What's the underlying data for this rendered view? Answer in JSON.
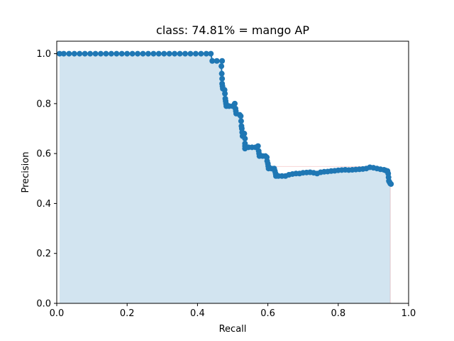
{
  "chart_data": {
    "type": "line",
    "title": "class: 74.81% = mango AP",
    "xlabel": "Recall",
    "ylabel": "Precision",
    "xlim": [
      0.0,
      1.0
    ],
    "ylim": [
      0.0,
      1.05
    ],
    "x_ticks": [
      "0.0",
      "0.2",
      "0.4",
      "0.6",
      "0.8",
      "1.0"
    ],
    "y_ticks": [
      "0.0",
      "0.2",
      "0.4",
      "0.6",
      "0.8",
      "1.0"
    ],
    "grid": false,
    "colors": {
      "series": "#1f77b4",
      "fill": "#1f77b4",
      "fill_opacity": 0.2,
      "envelope": "#d62728",
      "envelope_opacity": 0.2
    },
    "series": [
      {
        "points": [
          [
            0.008,
            1.0
          ],
          [
            0.02,
            1.0
          ],
          [
            0.035,
            1.0
          ],
          [
            0.05,
            1.0
          ],
          [
            0.065,
            1.0
          ],
          [
            0.08,
            1.0
          ],
          [
            0.095,
            1.0
          ],
          [
            0.11,
            1.0
          ],
          [
            0.125,
            1.0
          ],
          [
            0.14,
            1.0
          ],
          [
            0.155,
            1.0
          ],
          [
            0.17,
            1.0
          ],
          [
            0.185,
            1.0
          ],
          [
            0.2,
            1.0
          ],
          [
            0.215,
            1.0
          ],
          [
            0.23,
            1.0
          ],
          [
            0.245,
            1.0
          ],
          [
            0.26,
            1.0
          ],
          [
            0.275,
            1.0
          ],
          [
            0.29,
            1.0
          ],
          [
            0.305,
            1.0
          ],
          [
            0.32,
            1.0
          ],
          [
            0.335,
            1.0
          ],
          [
            0.35,
            1.0
          ],
          [
            0.365,
            1.0
          ],
          [
            0.38,
            1.0
          ],
          [
            0.395,
            1.0
          ],
          [
            0.41,
            1.0
          ],
          [
            0.425,
            1.0
          ],
          [
            0.438,
            1.0
          ],
          [
            0.442,
            0.971
          ],
          [
            0.455,
            0.971
          ],
          [
            0.47,
            0.971
          ],
          [
            0.468,
            0.95
          ],
          [
            0.469,
            0.92
          ],
          [
            0.47,
            0.9
          ],
          [
            0.47,
            0.88
          ],
          [
            0.471,
            0.87
          ],
          [
            0.472,
            0.86
          ],
          [
            0.477,
            0.855
          ],
          [
            0.478,
            0.84
          ],
          [
            0.479,
            0.82
          ],
          [
            0.48,
            0.81
          ],
          [
            0.481,
            0.8
          ],
          [
            0.482,
            0.79
          ],
          [
            0.49,
            0.79
          ],
          [
            0.5,
            0.79
          ],
          [
            0.506,
            0.8
          ],
          [
            0.508,
            0.78
          ],
          [
            0.509,
            0.77
          ],
          [
            0.51,
            0.76
          ],
          [
            0.52,
            0.755
          ],
          [
            0.523,
            0.75
          ],
          [
            0.524,
            0.73
          ],
          [
            0.525,
            0.71
          ],
          [
            0.526,
            0.7
          ],
          [
            0.527,
            0.685
          ],
          [
            0.528,
            0.67
          ],
          [
            0.53,
            0.68
          ],
          [
            0.533,
            0.68
          ],
          [
            0.535,
            0.66
          ],
          [
            0.535,
            0.64
          ],
          [
            0.535,
            0.63
          ],
          [
            0.535,
            0.62
          ],
          [
            0.545,
            0.625
          ],
          [
            0.555,
            0.625
          ],
          [
            0.565,
            0.625
          ],
          [
            0.572,
            0.63
          ],
          [
            0.574,
            0.61
          ],
          [
            0.575,
            0.6
          ],
          [
            0.576,
            0.59
          ],
          [
            0.585,
            0.59
          ],
          [
            0.593,
            0.59
          ],
          [
            0.597,
            0.585
          ],
          [
            0.598,
            0.57
          ],
          [
            0.6,
            0.56
          ],
          [
            0.601,
            0.55
          ],
          [
            0.602,
            0.54
          ],
          [
            0.61,
            0.54
          ],
          [
            0.618,
            0.54
          ],
          [
            0.62,
            0.53
          ],
          [
            0.622,
            0.52
          ],
          [
            0.623,
            0.51
          ],
          [
            0.63,
            0.51
          ],
          [
            0.64,
            0.51
          ],
          [
            0.65,
            0.51
          ],
          [
            0.66,
            0.515
          ],
          [
            0.67,
            0.518
          ],
          [
            0.68,
            0.52
          ],
          [
            0.69,
            0.52
          ],
          [
            0.7,
            0.523
          ],
          [
            0.71,
            0.524
          ],
          [
            0.72,
            0.525
          ],
          [
            0.73,
            0.523
          ],
          [
            0.74,
            0.52
          ],
          [
            0.75,
            0.525
          ],
          [
            0.76,
            0.527
          ],
          [
            0.77,
            0.528
          ],
          [
            0.78,
            0.53
          ],
          [
            0.79,
            0.531
          ],
          [
            0.8,
            0.533
          ],
          [
            0.81,
            0.534
          ],
          [
            0.82,
            0.535
          ],
          [
            0.83,
            0.534
          ],
          [
            0.84,
            0.535
          ],
          [
            0.85,
            0.536
          ],
          [
            0.86,
            0.537
          ],
          [
            0.87,
            0.538
          ],
          [
            0.88,
            0.54
          ],
          [
            0.89,
            0.545
          ],
          [
            0.9,
            0.543
          ],
          [
            0.91,
            0.54
          ],
          [
            0.92,
            0.537
          ],
          [
            0.93,
            0.535
          ],
          [
            0.935,
            0.532
          ],
          [
            0.94,
            0.53
          ],
          [
            0.942,
            0.52
          ],
          [
            0.943,
            0.505
          ],
          [
            0.944,
            0.49
          ],
          [
            0.946,
            0.485
          ],
          [
            0.948,
            0.48
          ],
          [
            0.95,
            0.478
          ]
        ]
      }
    ],
    "envelope": {
      "top": [
        [
          0.62,
          0.548
        ],
        [
          0.895,
          0.548
        ]
      ],
      "right_x": 0.948
    }
  }
}
